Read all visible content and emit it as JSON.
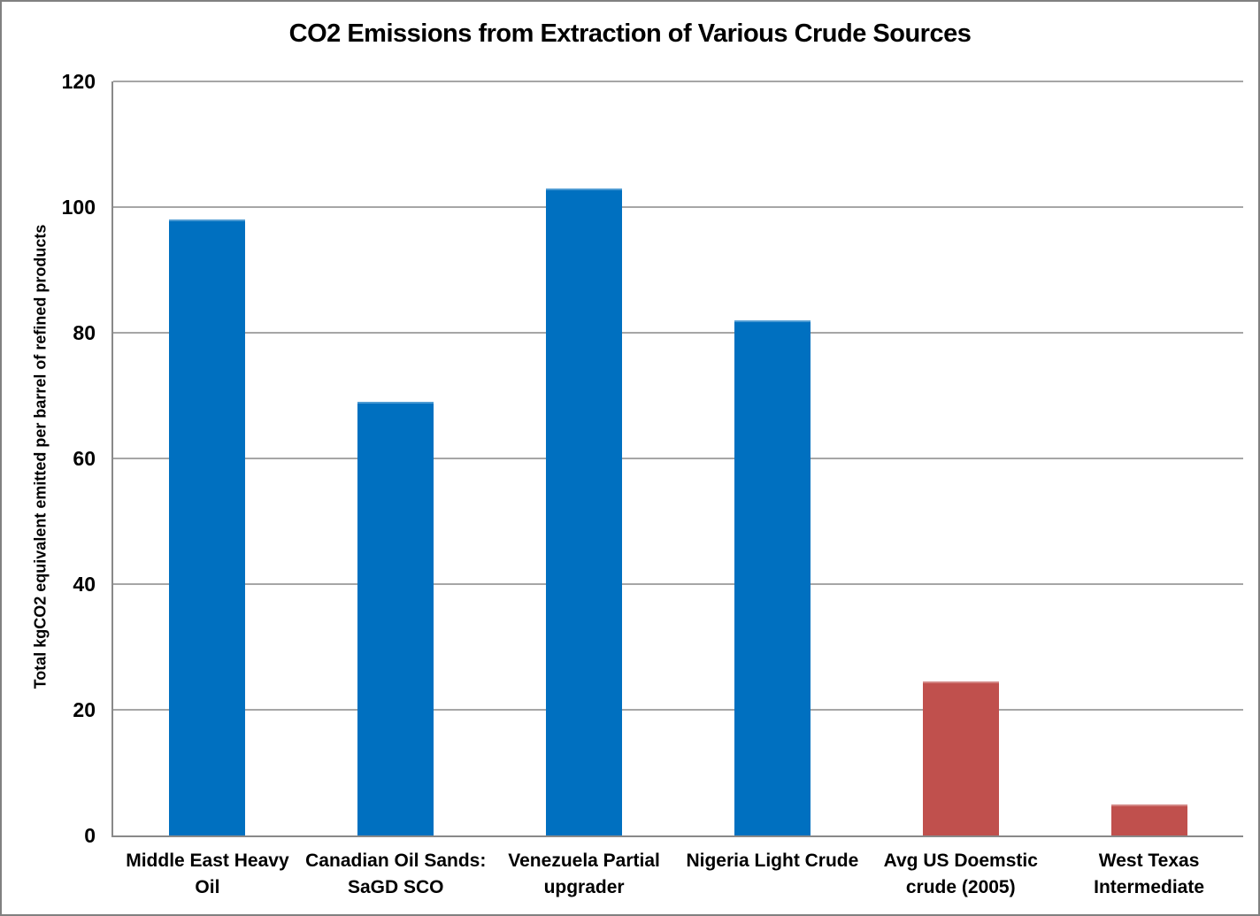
{
  "window": {
    "background": "#FFFFFF",
    "border_color": "#808080"
  },
  "chart_data": {
    "type": "bar",
    "title": "CO2 Emissions from Extraction of Various Crude Sources",
    "xlabel": "",
    "ylabel": "Total kgCO2 equivalent emitted per barrel of refined products",
    "categories": [
      "Middle East Heavy Oil",
      "Canadian Oil Sands: SaGD SCO",
      "Venezuela Partial upgrader",
      "Nigeria Light Crude",
      "Avg US Doemstic crude (2005)",
      "West Texas Intermediate"
    ],
    "values": [
      98,
      69,
      103,
      82,
      24.5,
      5
    ],
    "bar_colors": [
      "#0070C0",
      "#0070C0",
      "#0070C0",
      "#0070C0",
      "#C0504D",
      "#C0504D"
    ],
    "ylim": [
      0,
      120
    ],
    "yticks": [
      0,
      20,
      40,
      60,
      80,
      100,
      120
    ],
    "grid": true,
    "legend": false,
    "gridline_color": "#A6A6A6",
    "axis_color": "#898989",
    "text_color": "#000000"
  }
}
